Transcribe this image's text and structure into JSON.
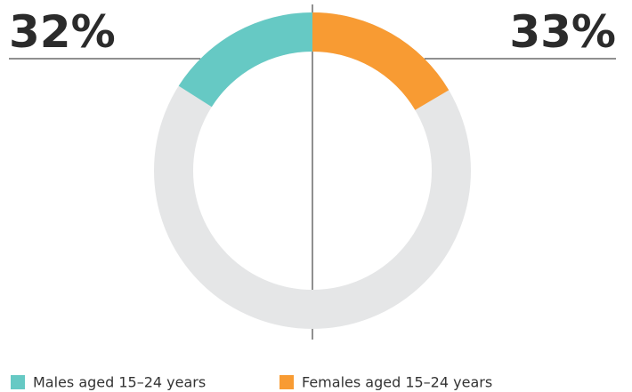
{
  "chart_data": {
    "type": "donut",
    "categories": [
      "Males aged 15–24 years",
      "Females aged 15–24 years"
    ],
    "values": [
      32,
      33
    ],
    "value_labels": [
      "32%",
      "33%"
    ],
    "colors": [
      "#66c9c4",
      "#f89b33"
    ],
    "vmax": 100
  }
}
